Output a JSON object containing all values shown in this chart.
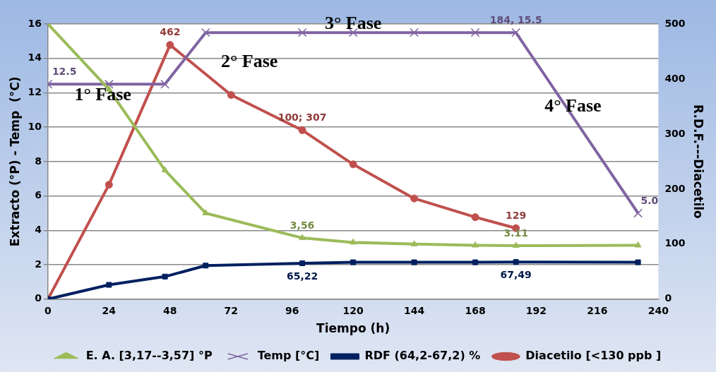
{
  "chart_data": {
    "type": "line",
    "xlabel": "Tiempo (h)",
    "ylabel": "Extracto (°P) - Temp  (°C)",
    "y2label": "R.D.F.---Diacetilo",
    "xlim": [
      0,
      240
    ],
    "xticks": [
      0,
      24,
      48,
      72,
      96,
      120,
      144,
      168,
      192,
      216,
      240
    ],
    "ylim": [
      0,
      16
    ],
    "yticks": [
      0,
      2,
      4,
      6,
      8,
      10,
      12,
      14,
      16
    ],
    "y2lim": [
      0,
      500
    ],
    "y2ticks": [
      0,
      100,
      200,
      300,
      400,
      500
    ],
    "grid": "y",
    "legend": "bottom",
    "series": [
      {
        "name": "E. A. [3,17--3,57] °P",
        "color": "#9bbb59",
        "marker": "triangle",
        "x": [
          0,
          24,
          46,
          62,
          100,
          120,
          144,
          168,
          184,
          232
        ],
        "values": [
          16,
          12.2,
          7.5,
          5.0,
          3.56,
          3.3,
          3.2,
          3.13,
          3.11,
          3.13
        ],
        "value_labels": [
          null,
          null,
          null,
          null,
          "3,56",
          null,
          null,
          null,
          "3.11",
          null
        ]
      },
      {
        "name": "Temp [°C]",
        "color": "#8064a2",
        "marker": "cross",
        "x": [
          0,
          24,
          46,
          62,
          100,
          120,
          144,
          168,
          184,
          232
        ],
        "values": [
          12.5,
          12.5,
          12.5,
          15.5,
          15.5,
          15.5,
          15.5,
          15.5,
          15.5,
          5.0
        ],
        "value_labels": [
          "12.5",
          null,
          null,
          null,
          null,
          null,
          null,
          null,
          "184, 15.5",
          "5.0"
        ]
      },
      {
        "name": "RDF (64,2-67,2) %",
        "color": "#002060",
        "marker": "square",
        "axis": "y2",
        "x": [
          0,
          24,
          46,
          62,
          100,
          120,
          144,
          168,
          184,
          232
        ],
        "values": [
          0,
          26,
          41,
          61,
          65.22,
          67,
          67,
          67,
          67.49,
          67
        ],
        "value_labels": [
          null,
          null,
          null,
          null,
          "65,22",
          null,
          null,
          null,
          "67,49",
          null
        ]
      },
      {
        "name": "Diacetilo [<130 ppb ]",
        "color": "#c0504d",
        "marker": "circle",
        "axis": "y2",
        "x": [
          0,
          24,
          48,
          72,
          100,
          120,
          144,
          168,
          184
        ],
        "values": [
          0,
          208,
          462,
          371,
          307,
          245,
          183,
          149,
          129
        ],
        "value_labels": [
          null,
          null,
          "462",
          null,
          "100; 307",
          null,
          null,
          null,
          "129"
        ]
      }
    ],
    "annotations": [
      "1° Fase",
      "2° Fase",
      "3° Fase",
      "4° Fase"
    ]
  }
}
